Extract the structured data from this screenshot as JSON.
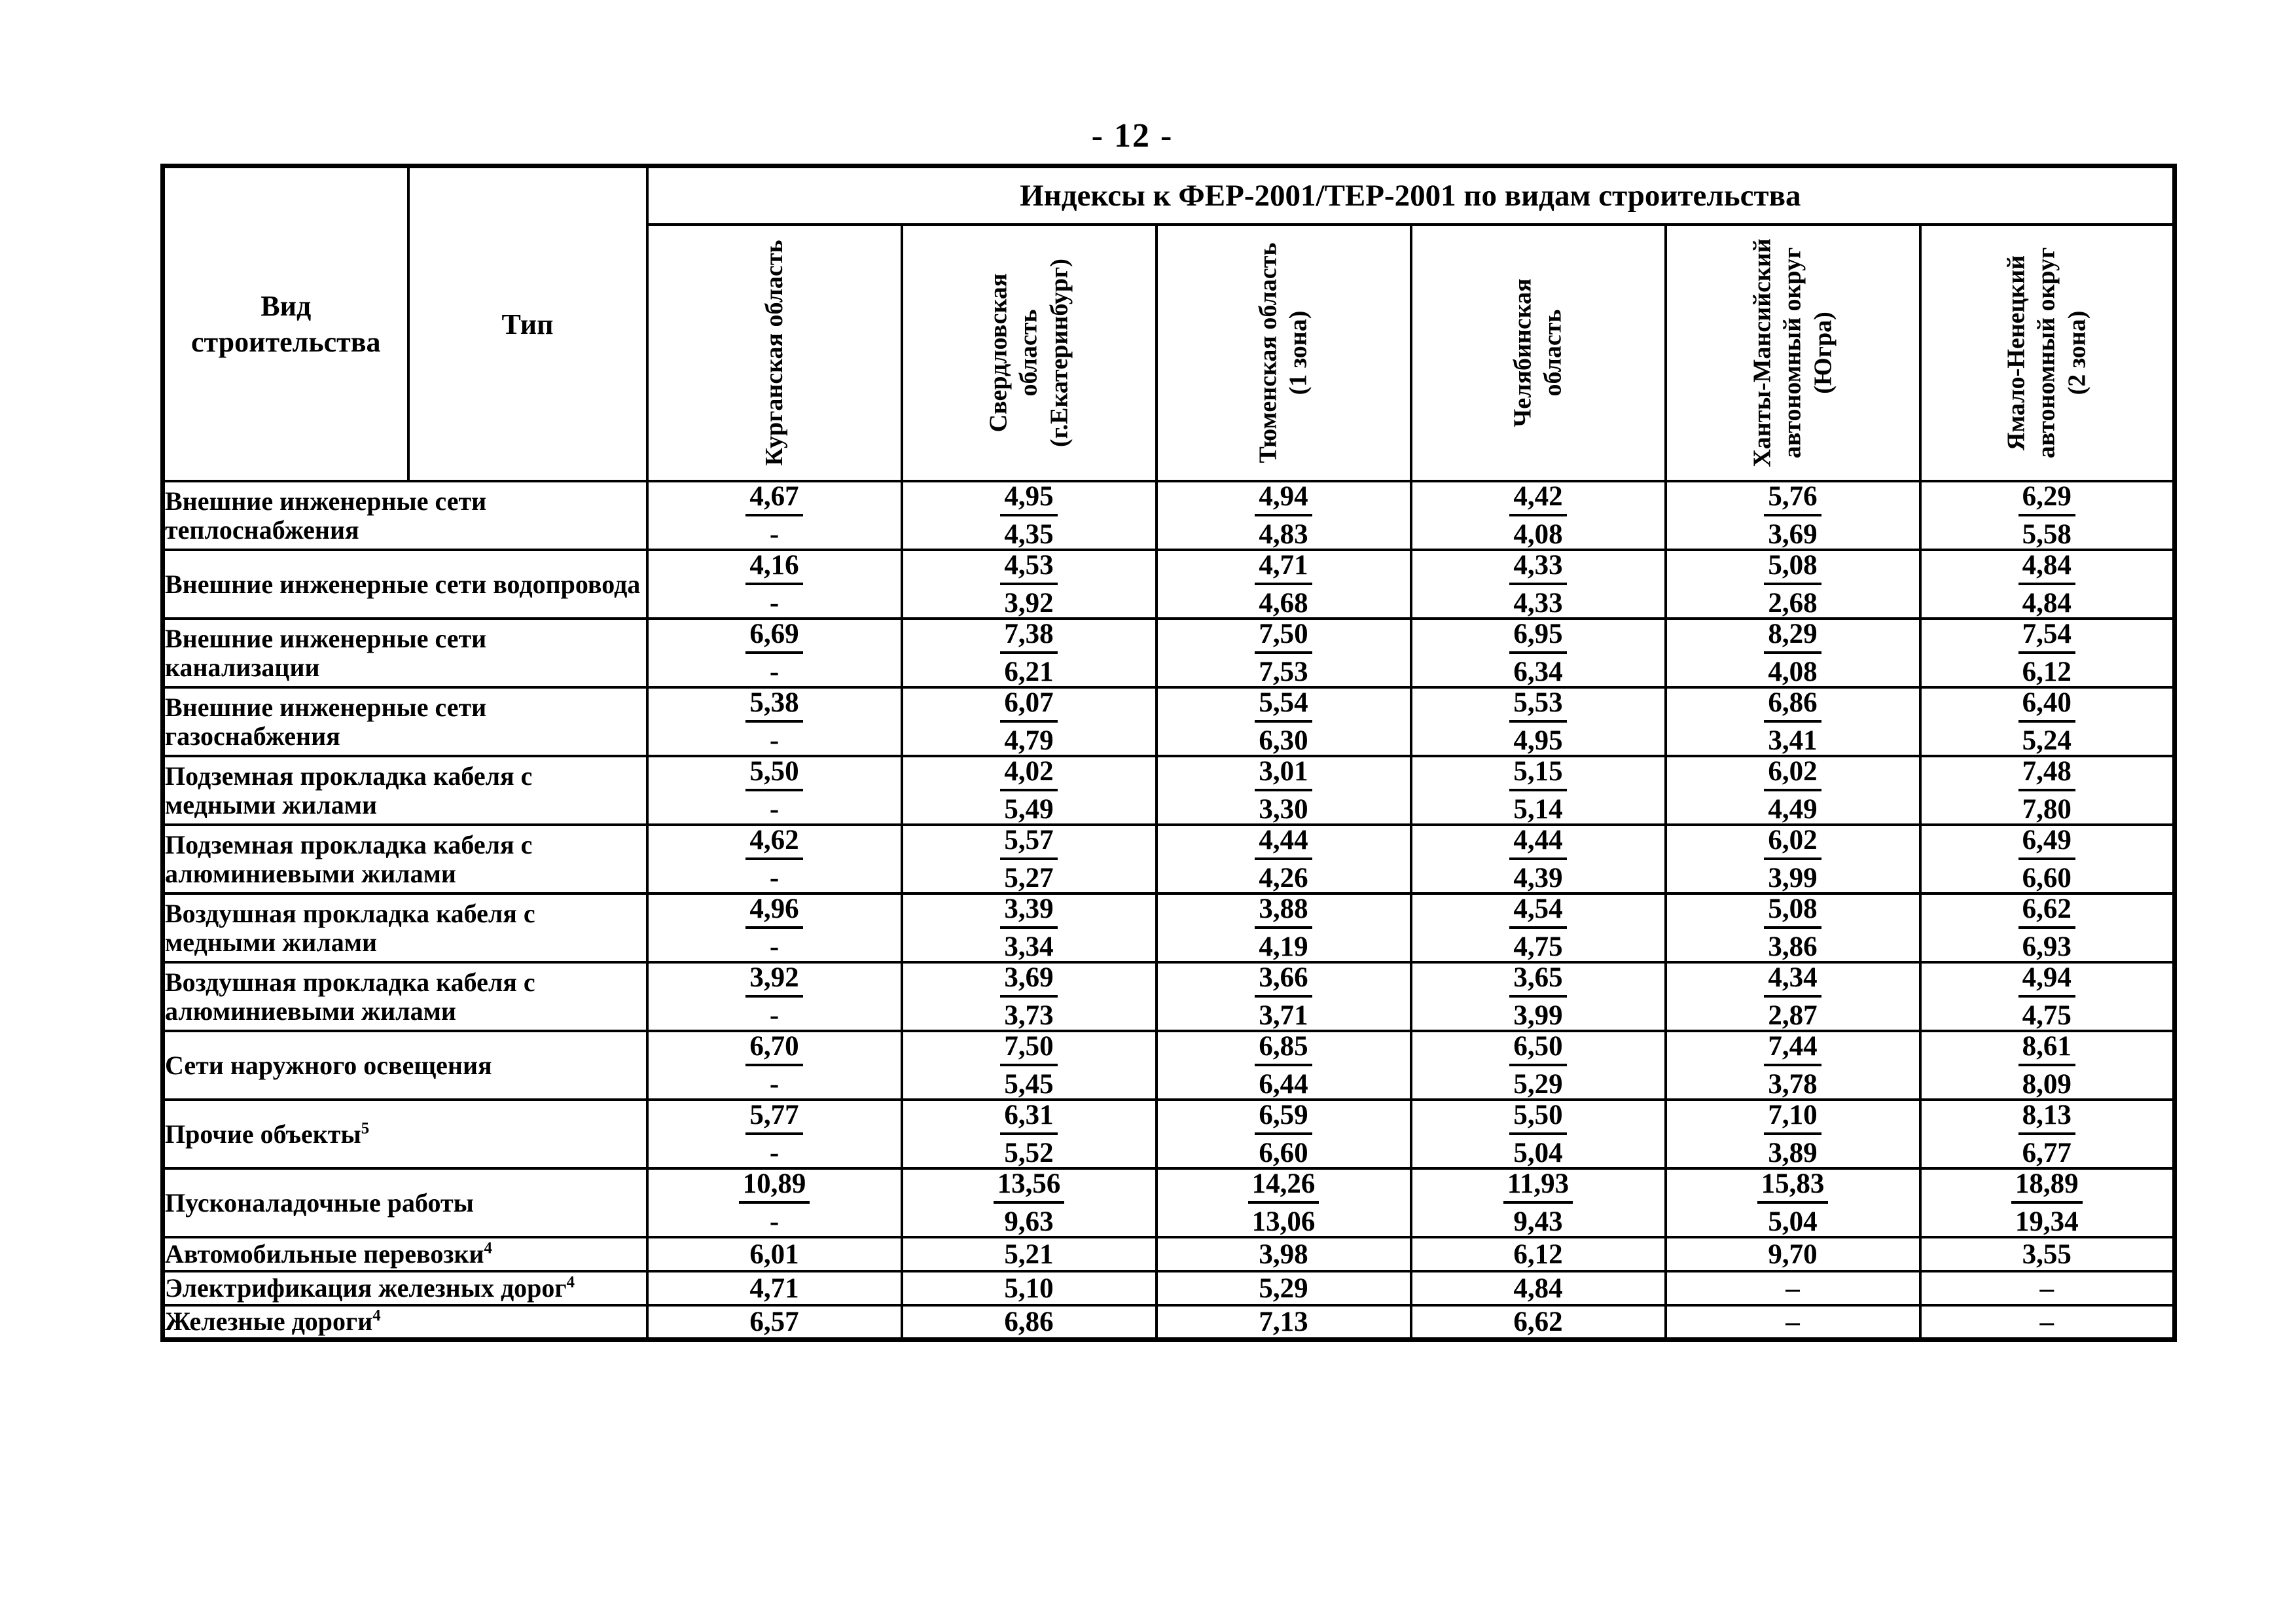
{
  "page": {
    "number_label": "- 12 -"
  },
  "table": {
    "corner": {
      "col1": "Вид\nстроительства",
      "col2": "Тип"
    },
    "banner": "Индексы к ФЕР-2001/ТЕР-2001 по видам строительства",
    "regions": [
      "Курганская область",
      "Свердловская\nобласть\n(г.Екатеринбург)",
      "Тюменская область\n(1 зона)",
      "Челябинская\nобласть",
      "Ханты-Мансийский\nавтономный округ\n(Югра)",
      "Ямало-Ненецкий\nавтономный округ\n(2 зона)"
    ],
    "rows": [
      {
        "label": "Внешние инженерные сети теплоснабжения",
        "sup": "",
        "cells": [
          {
            "num": "4,67",
            "den": "-"
          },
          {
            "num": "4,95",
            "den": "4,35"
          },
          {
            "num": "4,94",
            "den": "4,83"
          },
          {
            "num": "4,42",
            "den": "4,08"
          },
          {
            "num": "5,76",
            "den": "3,69"
          },
          {
            "num": "6,29",
            "den": "5,58"
          }
        ]
      },
      {
        "label": "Внешние инженерные сети водопровода",
        "sup": "",
        "cells": [
          {
            "num": "4,16",
            "den": "-"
          },
          {
            "num": "4,53",
            "den": "3,92"
          },
          {
            "num": "4,71",
            "den": "4,68"
          },
          {
            "num": "4,33",
            "den": "4,33"
          },
          {
            "num": "5,08",
            "den": "2,68"
          },
          {
            "num": "4,84",
            "den": "4,84"
          }
        ]
      },
      {
        "label": "Внешние инженерные сети канализации",
        "sup": "",
        "cells": [
          {
            "num": "6,69",
            "den": "-"
          },
          {
            "num": "7,38",
            "den": "6,21"
          },
          {
            "num": "7,50",
            "den": "7,53"
          },
          {
            "num": "6,95",
            "den": "6,34"
          },
          {
            "num": "8,29",
            "den": "4,08"
          },
          {
            "num": "7,54",
            "den": "6,12"
          }
        ]
      },
      {
        "label": "Внешние инженерные сети газоснабжения",
        "sup": "",
        "cells": [
          {
            "num": "5,38",
            "den": "-"
          },
          {
            "num": "6,07",
            "den": "4,79"
          },
          {
            "num": "5,54",
            "den": "6,30"
          },
          {
            "num": "5,53",
            "den": "4,95"
          },
          {
            "num": "6,86",
            "den": "3,41"
          },
          {
            "num": "6,40",
            "den": "5,24"
          }
        ]
      },
      {
        "label": "Подземная прокладка кабеля с медными жилами",
        "sup": "",
        "cells": [
          {
            "num": "5,50",
            "den": "-"
          },
          {
            "num": "4,02",
            "den": "5,49"
          },
          {
            "num": "3,01",
            "den": "3,30"
          },
          {
            "num": "5,15",
            "den": "5,14"
          },
          {
            "num": "6,02",
            "den": "4,49"
          },
          {
            "num": "7,48",
            "den": "7,80"
          }
        ]
      },
      {
        "label": "Подземная прокладка кабеля с алюминиевыми жилами",
        "sup": "",
        "cells": [
          {
            "num": "4,62",
            "den": "-"
          },
          {
            "num": "5,57",
            "den": "5,27"
          },
          {
            "num": "4,44",
            "den": "4,26"
          },
          {
            "num": "4,44",
            "den": "4,39"
          },
          {
            "num": "6,02",
            "den": "3,99"
          },
          {
            "num": "6,49",
            "den": "6,60"
          }
        ]
      },
      {
        "label": "Воздушная прокладка кабеля с медными жилами",
        "sup": "",
        "cells": [
          {
            "num": "4,96",
            "den": "-"
          },
          {
            "num": "3,39",
            "den": "3,34"
          },
          {
            "num": "3,88",
            "den": "4,19"
          },
          {
            "num": "4,54",
            "den": "4,75"
          },
          {
            "num": "5,08",
            "den": "3,86"
          },
          {
            "num": "6,62",
            "den": "6,93"
          }
        ]
      },
      {
        "label": "Воздушная прокладка кабеля с алюминиевыми жилами",
        "sup": "",
        "cells": [
          {
            "num": "3,92",
            "den": "-"
          },
          {
            "num": "3,69",
            "den": "3,73"
          },
          {
            "num": "3,66",
            "den": "3,71"
          },
          {
            "num": "3,65",
            "den": "3,99"
          },
          {
            "num": "4,34",
            "den": "2,87"
          },
          {
            "num": "4,94",
            "den": "4,75"
          }
        ]
      },
      {
        "label": "Сети наружного освещения",
        "sup": "",
        "cells": [
          {
            "num": "6,70",
            "den": "-"
          },
          {
            "num": "7,50",
            "den": "5,45"
          },
          {
            "num": "6,85",
            "den": "6,44"
          },
          {
            "num": "6,50",
            "den": "5,29"
          },
          {
            "num": "7,44",
            "den": "3,78"
          },
          {
            "num": "8,61",
            "den": "8,09"
          }
        ]
      },
      {
        "label": "Прочие объекты",
        "sup": "5",
        "cells": [
          {
            "num": "5,77",
            "den": "-"
          },
          {
            "num": "6,31",
            "den": "5,52"
          },
          {
            "num": "6,59",
            "den": "6,60"
          },
          {
            "num": "5,50",
            "den": "5,04"
          },
          {
            "num": "7,10",
            "den": "3,89"
          },
          {
            "num": "8,13",
            "den": "6,77"
          }
        ]
      },
      {
        "label": "Пусконаладочные работы",
        "sup": "",
        "cells": [
          {
            "num": "10,89",
            "den": "-"
          },
          {
            "num": "13,56",
            "den": "9,63"
          },
          {
            "num": "14,26",
            "den": "13,06"
          },
          {
            "num": "11,93",
            "den": "9,43"
          },
          {
            "num": "15,83",
            "den": "5,04"
          },
          {
            "num": "18,89",
            "den": "19,34"
          }
        ]
      },
      {
        "label": "Автомобильные перевозки",
        "sup": "4",
        "cells": [
          {
            "single": "6,01"
          },
          {
            "single": "5,21"
          },
          {
            "single": "3,98"
          },
          {
            "single": "6,12"
          },
          {
            "single": "9,70"
          },
          {
            "single": "3,55"
          }
        ]
      },
      {
        "label": "Электрификация железных дорог",
        "sup": "4",
        "cells": [
          {
            "single": "4,71"
          },
          {
            "single": "5,10"
          },
          {
            "single": "5,29"
          },
          {
            "single": "4,84"
          },
          {
            "single": "–"
          },
          {
            "single": "–"
          }
        ]
      },
      {
        "label": "Железные дороги",
        "sup": "4",
        "cells": [
          {
            "single": "6,57"
          },
          {
            "single": "6,86"
          },
          {
            "single": "7,13"
          },
          {
            "single": "6,62"
          },
          {
            "single": "–"
          },
          {
            "single": "–"
          }
        ]
      }
    ]
  }
}
